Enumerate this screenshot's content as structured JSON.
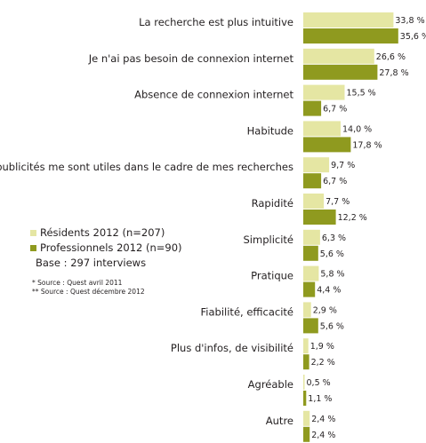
{
  "chart_data": {
    "type": "bar",
    "orientation": "horizontal",
    "categories": [
      "La recherche est plus intuitive",
      "Je n'ai pas besoin de connexion internet",
      "Absence de connexion internet",
      "Habitude",
      "Les publicités me sont utiles dans le cadre de mes recherches",
      "Rapidité",
      "Simplicité",
      "Pratique",
      "Fiabilité, efficacité",
      "Plus d'infos, de visibilité",
      "Agréable",
      "Autre"
    ],
    "series": [
      {
        "name": "Résidents 2012 (n=207)",
        "color": "#e5e6a3",
        "values": [
          33.8,
          26.6,
          15.5,
          14.0,
          9.7,
          7.7,
          6.3,
          5.8,
          2.9,
          1.9,
          0.5,
          2.4
        ],
        "labels": [
          "33,8 %",
          "26,6 %",
          "15,5 %",
          "14,0 %",
          "9,7 %",
          "7,7 %",
          "6,3 %",
          "5,8 %",
          "2,9 %",
          "1,9 %",
          "0,5 %",
          "2,4 %"
        ]
      },
      {
        "name": "Professionnels 2012 (n=90)",
        "color": "#8f9a1f",
        "values": [
          35.6,
          27.8,
          6.7,
          17.8,
          6.7,
          12.2,
          5.6,
          4.4,
          5.6,
          2.2,
          1.1,
          2.4
        ],
        "labels": [
          "35,6 %",
          "27,8 %",
          "6,7 %",
          "17,8 %",
          "6,7 %",
          "12,2 %",
          "5,6 %",
          "4,4 %",
          "5,6 %",
          "2,2 %",
          "1,1 %",
          "2,4 %"
        ]
      }
    ],
    "xlim": [
      0,
      40
    ],
    "grid": false,
    "legend_position": "left"
  },
  "legend_items": [
    {
      "label": "Résidents 2012 (n=207)",
      "color": "#e5e6a3"
    },
    {
      "label": "Professionnels 2012 (n=90)",
      "color": "#8f9a1f"
    }
  ],
  "base_text": "Base : 297 interviews",
  "sources": [
    "* Source : Quest avril 2011",
    "** Source : Quest décembre 2012"
  ]
}
